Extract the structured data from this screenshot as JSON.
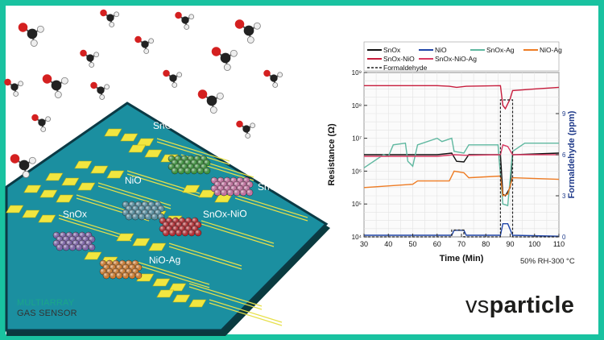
{
  "left_panel": {
    "brand_line1": "MULTIARRAY",
    "brand_line2": "GAS SENSOR",
    "sensor_labels": [
      "SnOx-NiO",
      "NiO",
      "SnOx-NiO-Ag",
      "SnOx",
      "SnOx-NiO",
      "NiO-Ag"
    ]
  },
  "logo": {
    "prefix": "vs",
    "suffix": "particle"
  },
  "chart_data": {
    "type": "line",
    "xlabel": "Time (Min)",
    "ylabel_left": "Resistance (Ω)",
    "ylabel_right": "Formaldehyde (ppm)",
    "xlim": [
      30,
      110
    ],
    "x_ticks": [
      "30",
      "40",
      "50",
      "60",
      "70",
      "80",
      "90",
      "100",
      "110"
    ],
    "yleft_scale": "log",
    "yleft_ticks": [
      "10⁴",
      "10⁵",
      "10⁶",
      "10⁷",
      "10⁸",
      "10⁹"
    ],
    "yright_ticks": [
      "0",
      "3",
      "6",
      "9"
    ],
    "grid": true,
    "legend_placement": "top",
    "condition_note": "50% RH-300 °C",
    "series": [
      {
        "name": "SnOx",
        "color": "#111111",
        "points": [
          [
            30,
            6.5
          ],
          [
            60,
            6.5
          ],
          [
            66,
            6.55
          ],
          [
            68,
            6.3
          ],
          [
            71,
            6.28
          ],
          [
            73,
            6.5
          ],
          [
            86,
            6.5
          ],
          [
            87,
            5.3
          ],
          [
            88,
            5.25
          ],
          [
            90,
            5.5
          ],
          [
            91,
            6.5
          ],
          [
            110,
            6.55
          ]
        ]
      },
      {
        "name": "NiO",
        "color": "#1f45a8",
        "points": [
          [
            30,
            4.05
          ],
          [
            66,
            4.05
          ],
          [
            67,
            4.2
          ],
          [
            71,
            4.2
          ],
          [
            72,
            4.05
          ],
          [
            86,
            4.05
          ],
          [
            87,
            4.4
          ],
          [
            89,
            4.4
          ],
          [
            91,
            4.05
          ],
          [
            110,
            4.02
          ]
        ]
      },
      {
        "name": "SnOx-Ag",
        "color": "#5fb8a0",
        "points": [
          [
            30,
            6.1
          ],
          [
            38,
            6.5
          ],
          [
            40,
            6.45
          ],
          [
            42,
            6.8
          ],
          [
            47,
            6.85
          ],
          [
            48,
            6.3
          ],
          [
            50,
            6.15
          ],
          [
            52,
            6.8
          ],
          [
            60,
            7.0
          ],
          [
            62,
            6.9
          ],
          [
            66,
            7.0
          ],
          [
            67,
            6.6
          ],
          [
            71,
            6.55
          ],
          [
            73,
            6.8
          ],
          [
            85,
            6.8
          ],
          [
            87,
            5.0
          ],
          [
            89,
            4.95
          ],
          [
            91,
            6.6
          ],
          [
            96,
            6.85
          ],
          [
            110,
            6.85
          ]
        ]
      },
      {
        "name": "NiO-Ag",
        "color": "#ee7c24",
        "points": [
          [
            30,
            5.5
          ],
          [
            50,
            5.6
          ],
          [
            52,
            5.7
          ],
          [
            65,
            5.7
          ],
          [
            67,
            6.0
          ],
          [
            71,
            5.95
          ],
          [
            73,
            5.8
          ],
          [
            86,
            5.85
          ],
          [
            87,
            5.25
          ],
          [
            89,
            5.3
          ],
          [
            91,
            5.8
          ],
          [
            110,
            5.75
          ]
        ]
      },
      {
        "name": "SnOx-NiO",
        "color": "#c71c3c",
        "points": [
          [
            30,
            8.6
          ],
          [
            60,
            8.6
          ],
          [
            65,
            8.58
          ],
          [
            68,
            8.55
          ],
          [
            72,
            8.58
          ],
          [
            86,
            8.6
          ],
          [
            87,
            8.0
          ],
          [
            88,
            7.9
          ],
          [
            90,
            8.2
          ],
          [
            91,
            8.45
          ],
          [
            100,
            8.5
          ],
          [
            110,
            8.55
          ]
        ]
      },
      {
        "name": "SnOx-NiO-Ag",
        "color": "#d93a63",
        "points": [
          [
            30,
            6.45
          ],
          [
            60,
            6.45
          ],
          [
            67,
            6.5
          ],
          [
            72,
            6.48
          ],
          [
            86,
            6.5
          ],
          [
            87,
            6.8
          ],
          [
            89,
            6.75
          ],
          [
            91,
            6.5
          ],
          [
            110,
            6.5
          ]
        ]
      }
    ],
    "formaldehyde": {
      "name": "Formaldehyde",
      "color": "#222222",
      "points": [
        [
          30,
          0
        ],
        [
          66,
          0
        ],
        [
          66,
          0.5
        ],
        [
          71,
          0.5
        ],
        [
          71,
          0
        ],
        [
          86,
          0
        ],
        [
          86,
          10
        ],
        [
          91,
          10
        ],
        [
          91,
          0
        ],
        [
          110,
          0
        ]
      ]
    }
  }
}
